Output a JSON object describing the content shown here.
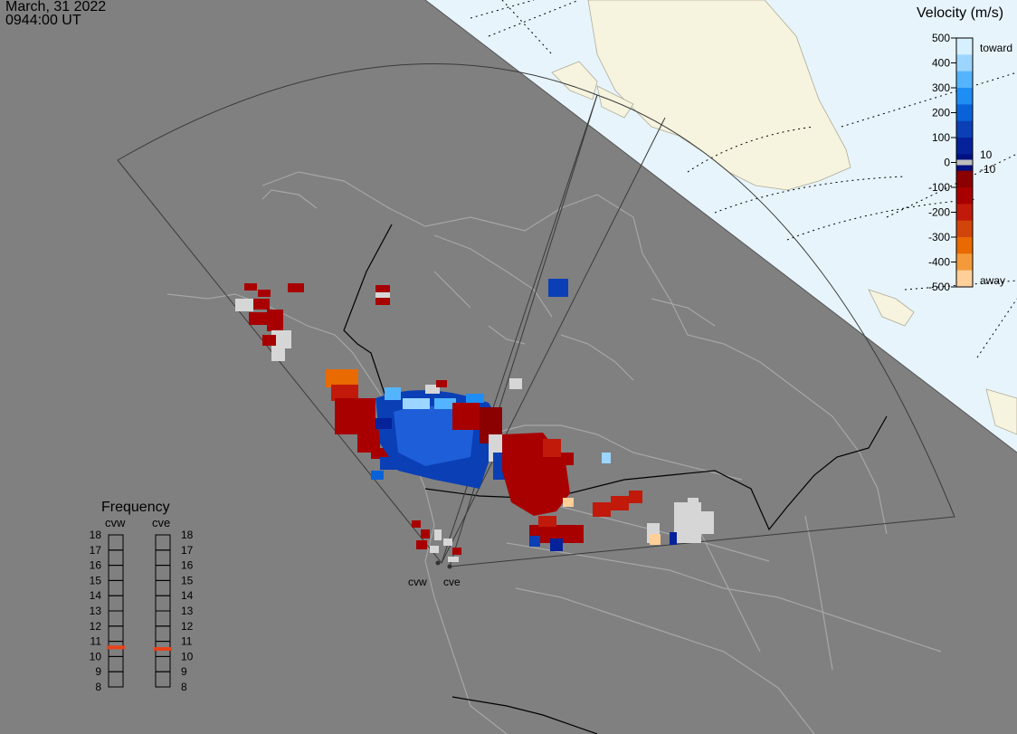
{
  "header": {
    "date": "March, 31 2022",
    "time": "0944:00 UT"
  },
  "velocity_legend": {
    "title": "Velocity (m/s)",
    "ticks": [
      "500",
      "400",
      "300",
      "200",
      "100",
      "0",
      "-100",
      "-200",
      "-300",
      "-400",
      "-500"
    ],
    "inner_labels": [
      "10",
      "-10"
    ],
    "end_labels": {
      "toward": "toward",
      "away": "away"
    },
    "colors": [
      "#d7f0ff",
      "#9cd5ff",
      "#55b4ff",
      "#1e8ef5",
      "#0a62d8",
      "#0a3fb5",
      "#05229a",
      "#001080",
      "#8b0000",
      "#a80000",
      "#c11a0a",
      "#d2450a",
      "#e86a00",
      "#f59a3a",
      "#ffcf9a"
    ]
  },
  "frequency_legend": {
    "title": "Frequency",
    "radars": [
      {
        "name": "cvw",
        "active_mhz": 10.6
      },
      {
        "name": "cve",
        "active_mhz": 10.5
      }
    ],
    "levels": [
      "18",
      "17",
      "16",
      "15",
      "14",
      "13",
      "12",
      "11",
      "10",
      "9",
      "8"
    ],
    "marker_color": "#e8431a"
  },
  "map": {
    "radar_labels": [
      "cvw",
      "cve"
    ],
    "colors": {
      "night": "#808080",
      "ocean_day": "#e7f4fb",
      "land_day": "#f6f3df"
    }
  }
}
